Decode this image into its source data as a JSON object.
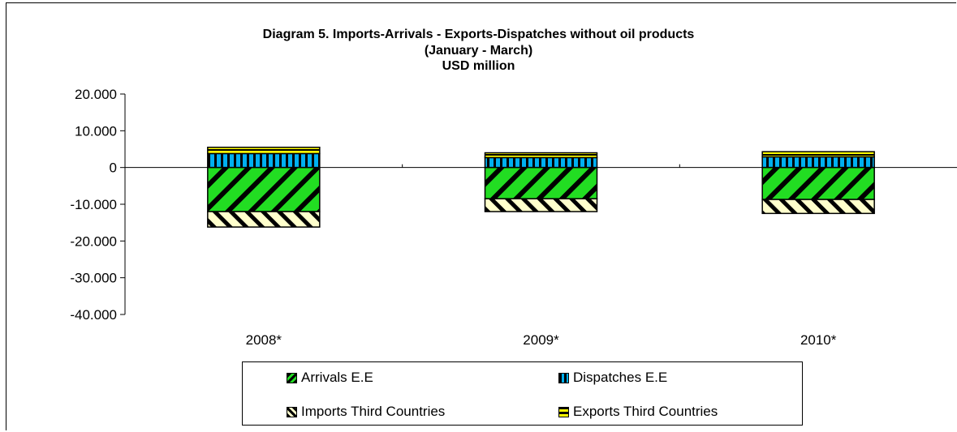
{
  "chart_data": {
    "type": "bar",
    "stacked": true,
    "title_lines": [
      "Diagram 5. Imports-Arrivals - Exports-Dispatches without oil products",
      "(January - March)",
      "USD million"
    ],
    "categories": [
      "2008*",
      "2009*",
      "2010*"
    ],
    "series": [
      {
        "name": "Dispatches  E.E",
        "values": [
          3800,
          2700,
          2900
        ],
        "color": "#00b0f0",
        "pattern": "vertical"
      },
      {
        "name": "Exports Third Countries",
        "values": [
          1700,
          1300,
          1400
        ],
        "color": "#ffff00",
        "pattern": "horizontal"
      },
      {
        "name": "Arrivals E.E",
        "values": [
          -12000,
          -8500,
          -8700
        ],
        "color": "#22dd22",
        "pattern": "diagonal"
      },
      {
        "name": "Imports Third Countries",
        "values": [
          -4200,
          -3500,
          -3800
        ],
        "color": "#ffffcc",
        "pattern": "backdiagonal"
      }
    ],
    "yticks": [
      "20.000",
      "10.000",
      "0",
      "-10.000",
      "-20.000",
      "-30.000",
      "-40.000"
    ],
    "ytick_values": [
      20000,
      10000,
      0,
      -10000,
      -20000,
      -30000,
      -40000
    ],
    "ylim": [
      -40000,
      20000
    ],
    "legend_position": "bottom",
    "grid": false
  },
  "legend": {
    "items": [
      {
        "label": "Arrivals E.E",
        "series_index": 2
      },
      {
        "label": "Dispatches  E.E",
        "series_index": 0
      },
      {
        "label": "Imports Third Countries",
        "series_index": 3
      },
      {
        "label": "Exports Third Countries",
        "series_index": 1
      }
    ]
  }
}
